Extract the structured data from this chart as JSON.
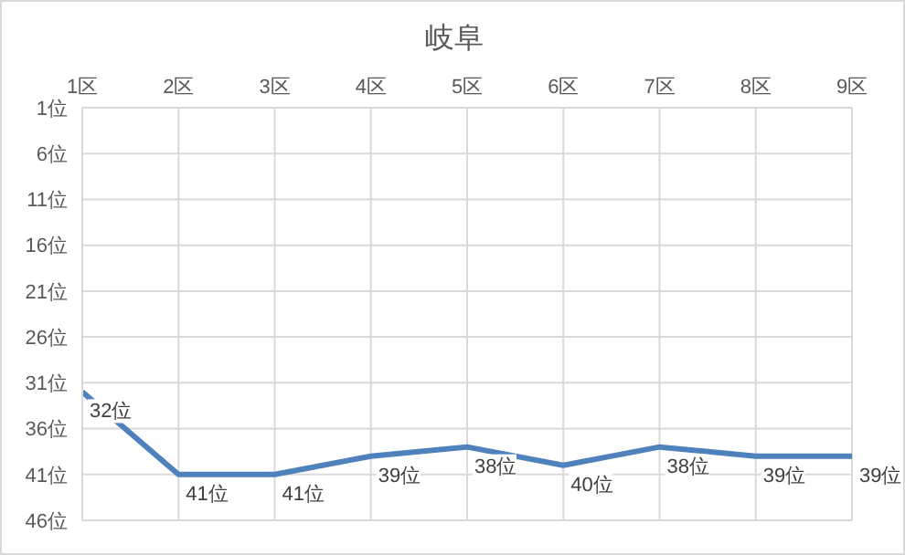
{
  "chart_data": {
    "type": "line",
    "title": "岐阜",
    "categories": [
      "1区",
      "2区",
      "3区",
      "4区",
      "5区",
      "6区",
      "7区",
      "8区",
      "9区"
    ],
    "series": [
      {
        "color": "#4f81bd",
        "values": [
          32,
          41,
          41,
          39,
          38,
          40,
          38,
          39,
          39
        ],
        "value_labels": [
          "32位",
          "41位",
          "41位",
          "39位",
          "38位",
          "40位",
          "38位",
          "39位",
          "39位"
        ]
      }
    ],
    "ylim": [
      46,
      1
    ],
    "yticks": [
      {
        "value": 1,
        "label": "1位"
      },
      {
        "value": 6,
        "label": "6位"
      },
      {
        "value": 11,
        "label": "11位"
      },
      {
        "value": 16,
        "label": "16位"
      },
      {
        "value": 21,
        "label": "21位"
      },
      {
        "value": 26,
        "label": "26位"
      },
      {
        "value": 31,
        "label": "31位"
      },
      {
        "value": 36,
        "label": "36位"
      },
      {
        "value": 41,
        "label": "41位"
      },
      {
        "value": 46,
        "label": "46位"
      }
    ],
    "grid": true,
    "marker": "none",
    "line_style": "solid"
  }
}
